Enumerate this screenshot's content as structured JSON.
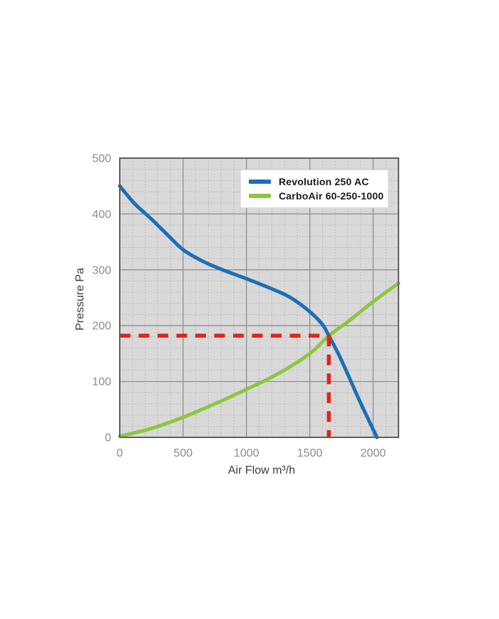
{
  "chart_data": {
    "type": "line",
    "title": "",
    "xlabel": "Air Flow m³/h",
    "ylabel": "Pressure Pa",
    "xlim": [
      0,
      2200
    ],
    "ylim": [
      0,
      500
    ],
    "x_ticks": [
      0,
      500,
      1000,
      1500,
      2000
    ],
    "y_ticks": [
      0,
      100,
      200,
      300,
      400,
      500
    ],
    "x_minor_step": 100,
    "y_minor_step": 20,
    "grid": true,
    "legend_position": "top-right",
    "plot_bg_color": "#d9d9d9",
    "major_grid_color": "#8f8f8f",
    "minor_grid_color": "#b3b3b3",
    "border_color": "#5f5f5f",
    "series": [
      {
        "name": "Revolution 250 AC",
        "color": "#1f6eb4",
        "points": [
          [
            0,
            450
          ],
          [
            120,
            418
          ],
          [
            250,
            391
          ],
          [
            380,
            362
          ],
          [
            500,
            336
          ],
          [
            650,
            316
          ],
          [
            800,
            301
          ],
          [
            1000,
            284
          ],
          [
            1200,
            266
          ],
          [
            1350,
            250
          ],
          [
            1500,
            225
          ],
          [
            1600,
            202
          ],
          [
            1650,
            182
          ],
          [
            1720,
            152
          ],
          [
            1800,
            113
          ],
          [
            1900,
            62
          ],
          [
            2030,
            0
          ]
        ]
      },
      {
        "name": "CarboAir 60-250-1000",
        "color": "#8dc63f",
        "points": [
          [
            0,
            2
          ],
          [
            250,
            16
          ],
          [
            500,
            36
          ],
          [
            750,
            60
          ],
          [
            1000,
            86
          ],
          [
            1250,
            114
          ],
          [
            1500,
            150
          ],
          [
            1650,
            182
          ],
          [
            1800,
            207
          ],
          [
            2000,
            243
          ],
          [
            2200,
            276
          ]
        ]
      }
    ],
    "annotation": {
      "type": "dashed-crosshair",
      "color": "#e2231a",
      "operating_point": {
        "x": 1650,
        "y": 182
      }
    }
  }
}
